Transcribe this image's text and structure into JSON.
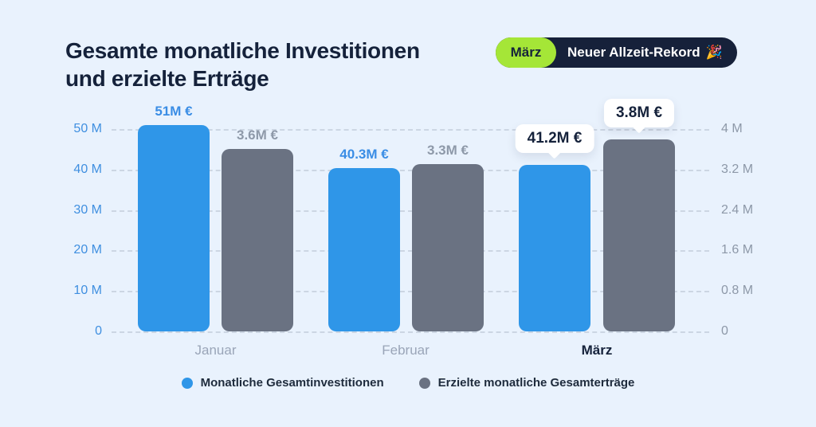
{
  "page": {
    "background": "#e9f2fd"
  },
  "header": {
    "title_lines": [
      "Gesamte monatliche Investitionen",
      "und erzielte Erträge"
    ],
    "badge": {
      "month": "März",
      "label": "Neuer Allzeit-Rekord",
      "emoji": "🎉",
      "pill_color": "#a5e637",
      "bg_color": "#16213a"
    }
  },
  "chart_data": {
    "type": "bar",
    "title": "Gesamte monatliche Investitionen und erzielte Erträge",
    "categories": [
      "Januar",
      "Februar",
      "März"
    ],
    "series": [
      {
        "name": "Monatliche Gesamtinvestitionen",
        "axis": "left",
        "color": "#2f96e8",
        "values": [
          51,
          40.3,
          41.2
        ],
        "labels": [
          "51M €",
          "40.3M €",
          "41.2M €"
        ]
      },
      {
        "name": "Erzielte monatliche Gesamterträge",
        "axis": "right",
        "color": "#6a7282",
        "values": [
          3.6,
          3.3,
          3.8
        ],
        "labels": [
          "3.6M €",
          "3.3M €",
          "3.8M €"
        ]
      }
    ],
    "left_axis": {
      "max": 50,
      "ticks": [
        "50 M",
        "40 M",
        "30 M",
        "20 M",
        "10 M",
        "0"
      ],
      "color": "#3f8fe0"
    },
    "right_axis": {
      "max": 4,
      "ticks": [
        "4 M",
        "3.2 M",
        "2.4 M",
        "1.6 M",
        "0.8 M",
        "0"
      ],
      "color": "#8d98a8"
    },
    "grid": "dashed-horizontal",
    "legend_position": "bottom",
    "highlighted_category": "März",
    "highlight_style": "white-tooltip"
  }
}
